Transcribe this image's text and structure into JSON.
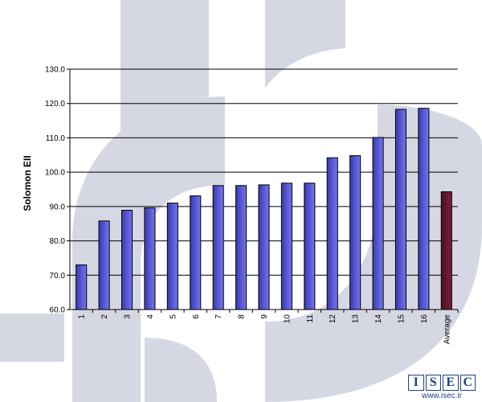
{
  "chart_data": {
    "type": "bar",
    "title": "",
    "xlabel": "",
    "ylabel": "Solomon EII",
    "categories": [
      "1",
      "2",
      "3",
      "4",
      "5",
      "6",
      "7",
      "8",
      "9",
      "10",
      "11",
      "12",
      "13",
      "14",
      "15",
      "16",
      "Average"
    ],
    "values": [
      73.0,
      85.8,
      88.9,
      89.6,
      91.0,
      93.1,
      96.1,
      96.1,
      96.3,
      96.8,
      96.8,
      104.2,
      104.8,
      110.1,
      118.3,
      118.6,
      94.3
    ],
    "y_ticks": [
      "60.0",
      "70.0",
      "80.0",
      "90.0",
      "100.0",
      "110.0",
      "120.0",
      "130.0"
    ],
    "ylim": [
      60,
      130
    ],
    "grid": true,
    "colors": {
      "bar_fill": "#7575f0",
      "bar_fill_dark": "#3a3ab0",
      "average_fill": "#7a2038",
      "average_fill_dark": "#4a1020",
      "watermark": "#d5d8e3"
    }
  },
  "logo": {
    "letters": [
      "I",
      "S",
      "E",
      "C"
    ],
    "url": "www.isec.ir"
  }
}
